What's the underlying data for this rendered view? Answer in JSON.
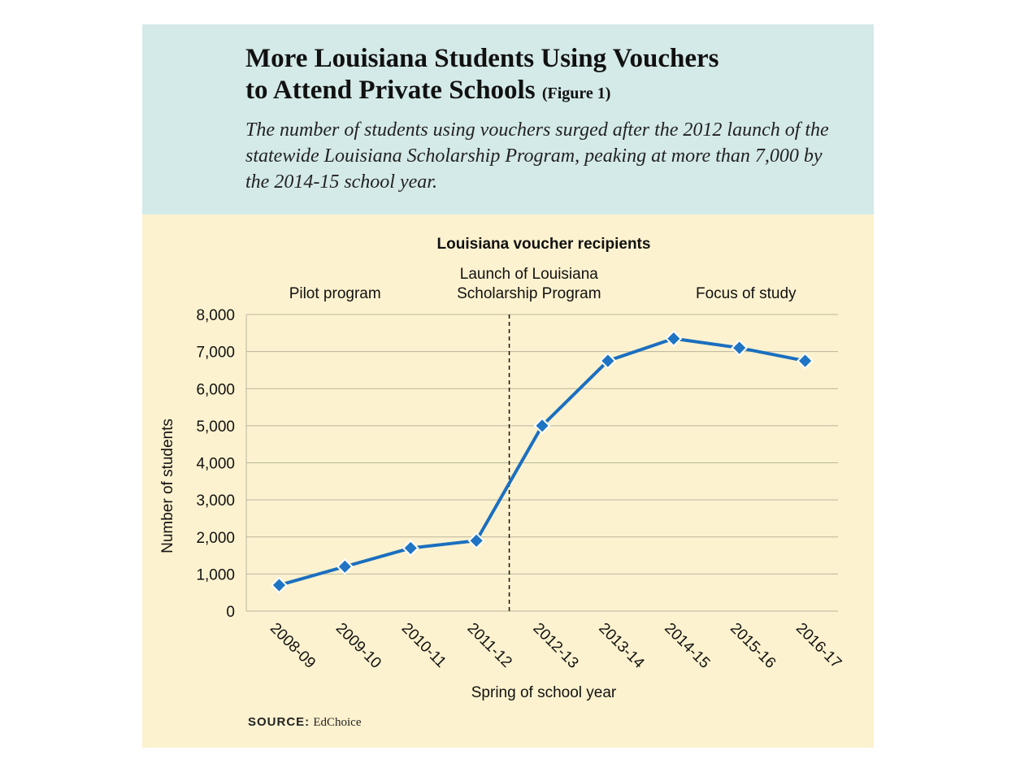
{
  "header": {
    "title_line1": "More Louisiana Students Using Vouchers",
    "title_line2": "to Attend Private Schools",
    "figure_label": "(Figure 1)",
    "subtitle": "The number of students using vouchers surged after the 2012 launch of the statewide Louisiana Scholarship Program, peaking at more than 7,000 by the 2014-15 school year."
  },
  "colors": {
    "header_bg": "#d4eae8",
    "chart_bg": "#fdf2cf",
    "line": "#1b6fbf",
    "marker": "#1f74c4",
    "grid": "#b9b59c"
  },
  "chart_data": {
    "type": "line",
    "title": "Louisiana voucher recipients",
    "xlabel": "Spring of school year",
    "ylabel": "Number of students",
    "categories": [
      "2008-09",
      "2009-10",
      "2010-11",
      "2011-12",
      "2012-13",
      "2013-14",
      "2014-15",
      "2015-16",
      "2016-17"
    ],
    "series": [
      {
        "values": [
          700,
          1200,
          1700,
          1900,
          5000,
          6750,
          7350,
          7100,
          6750
        ]
      }
    ],
    "ylim": [
      0,
      8000
    ],
    "yticks": [
      0,
      1000,
      2000,
      3000,
      4000,
      5000,
      6000,
      7000,
      8000
    ],
    "ytick_labels": [
      "0",
      "1,000",
      "2,000",
      "3,000",
      "4,000",
      "5,000",
      "6,000",
      "7,000",
      "8,000"
    ],
    "grid": true,
    "marker": "diamond",
    "divider": {
      "position_x": 3.5,
      "style": "dashed"
    },
    "annotations": [
      {
        "lines": [
          "Pilot program"
        ],
        "at_x": 0.85
      },
      {
        "lines": [
          "Launch of Louisiana",
          "Scholarship Program"
        ],
        "at_x": 3.8
      },
      {
        "lines": [
          "Focus of study"
        ],
        "at_x": 7.1
      }
    ]
  },
  "source": {
    "label": "SOURCE:",
    "text": "EdChoice"
  }
}
